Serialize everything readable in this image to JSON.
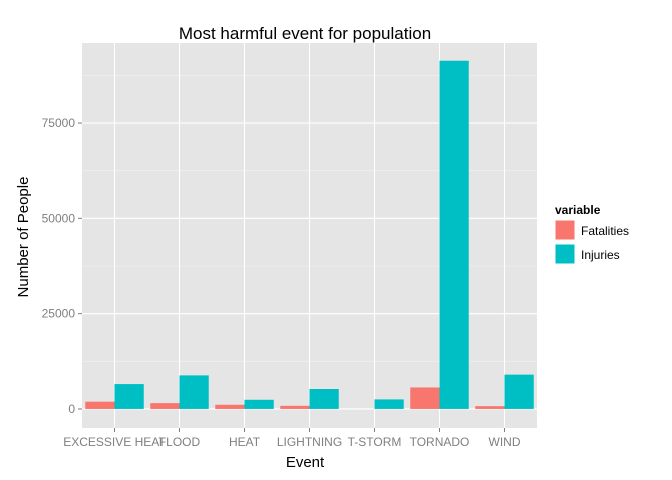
{
  "chart_data": {
    "type": "bar",
    "title": "Most harmful event for population",
    "xlabel": "Event",
    "ylabel": "Number of People",
    "categories": [
      "EXCESSIVE HEAT",
      "FLOOD",
      "HEAT",
      "LIGHTNING",
      "T-STORM",
      "TORNADO",
      "WIND"
    ],
    "series": [
      {
        "name": "Fatalities",
        "color": "#F8766D",
        "values": [
          1903,
          1524,
          1100,
          816,
          0,
          5633,
          726
        ]
      },
      {
        "name": "Injuries",
        "color": "#00BFC4",
        "values": [
          6525,
          8804,
          2400,
          5230,
          2500,
          91346,
          9000
        ]
      }
    ],
    "ylim": [
      -5000,
      96000
    ],
    "yticks": [
      0,
      25000,
      50000,
      75000
    ],
    "legend": {
      "title": "variable",
      "position": "right"
    },
    "grid": true,
    "panel_background": "#E5E5E5",
    "grid_color": "#FFFFFF"
  }
}
